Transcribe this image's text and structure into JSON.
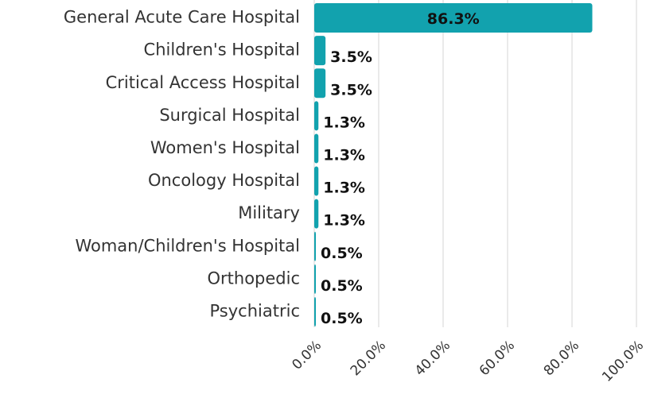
{
  "chart_data": {
    "type": "bar",
    "orientation": "horizontal",
    "categories": [
      "General Acute Care Hospital",
      "Children's Hospital",
      "Critical Access Hospital",
      "Surgical Hospital",
      "Women's Hospital",
      "Oncology Hospital",
      "Military",
      "Woman/Children's Hospital",
      "Orthopedic",
      "Psychiatric"
    ],
    "values": [
      86.3,
      3.5,
      3.5,
      1.3,
      1.3,
      1.3,
      1.3,
      0.5,
      0.5,
      0.5
    ],
    "value_labels": [
      "86.3%",
      "3.5%",
      "3.5%",
      "1.3%",
      "1.3%",
      "1.3%",
      "1.3%",
      "0.5%",
      "0.5%",
      "0.5%"
    ],
    "color": "#12a2ae",
    "xlim": [
      0,
      100
    ],
    "xticks": [
      {
        "value": 0,
        "label": "0.0%"
      },
      {
        "value": 20,
        "label": "20.0%"
      },
      {
        "value": 40,
        "label": "40.0%"
      },
      {
        "value": 60,
        "label": "60.0%"
      },
      {
        "value": 80,
        "label": "80.0%"
      },
      {
        "value": 100,
        "label": "100.0%"
      }
    ],
    "grid": true
  }
}
